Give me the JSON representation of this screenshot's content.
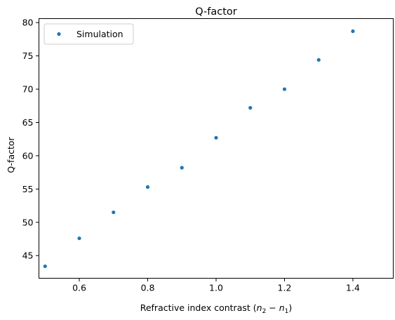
{
  "chart_data": {
    "type": "scatter",
    "title": "Q-factor",
    "xlabel_main": "Refractive index contrast (",
    "xlabel_n": "n",
    "xlabel_sub1": "2",
    "xlabel_minus": " − ",
    "xlabel_sub2": "1",
    "xlabel_close": ")",
    "ylabel": "Q-factor",
    "xlim": [
      0.482,
      1.518
    ],
    "ylim": [
      41.6,
      80.6
    ],
    "xticks": [
      0.6,
      0.8,
      1.0,
      1.2,
      1.4
    ],
    "xtick_labels": [
      "0.6",
      "0.8",
      "1.0",
      "1.2",
      "1.4"
    ],
    "yticks": [
      45,
      50,
      55,
      60,
      65,
      70,
      75,
      80
    ],
    "ytick_labels": [
      "45",
      "50",
      "55",
      "60",
      "65",
      "70",
      "75",
      "80"
    ],
    "legend_position": "upper-left",
    "grid": false,
    "series": [
      {
        "name": "Simulation",
        "color": "#1f77b4",
        "marker": "dot",
        "x": [
          0.5,
          0.6,
          0.7,
          0.8,
          0.9,
          1.0,
          1.1,
          1.2,
          1.3,
          1.4
        ],
        "y": [
          43.4,
          47.6,
          51.5,
          55.3,
          58.2,
          62.7,
          67.2,
          70.0,
          74.4,
          78.7
        ]
      }
    ]
  }
}
